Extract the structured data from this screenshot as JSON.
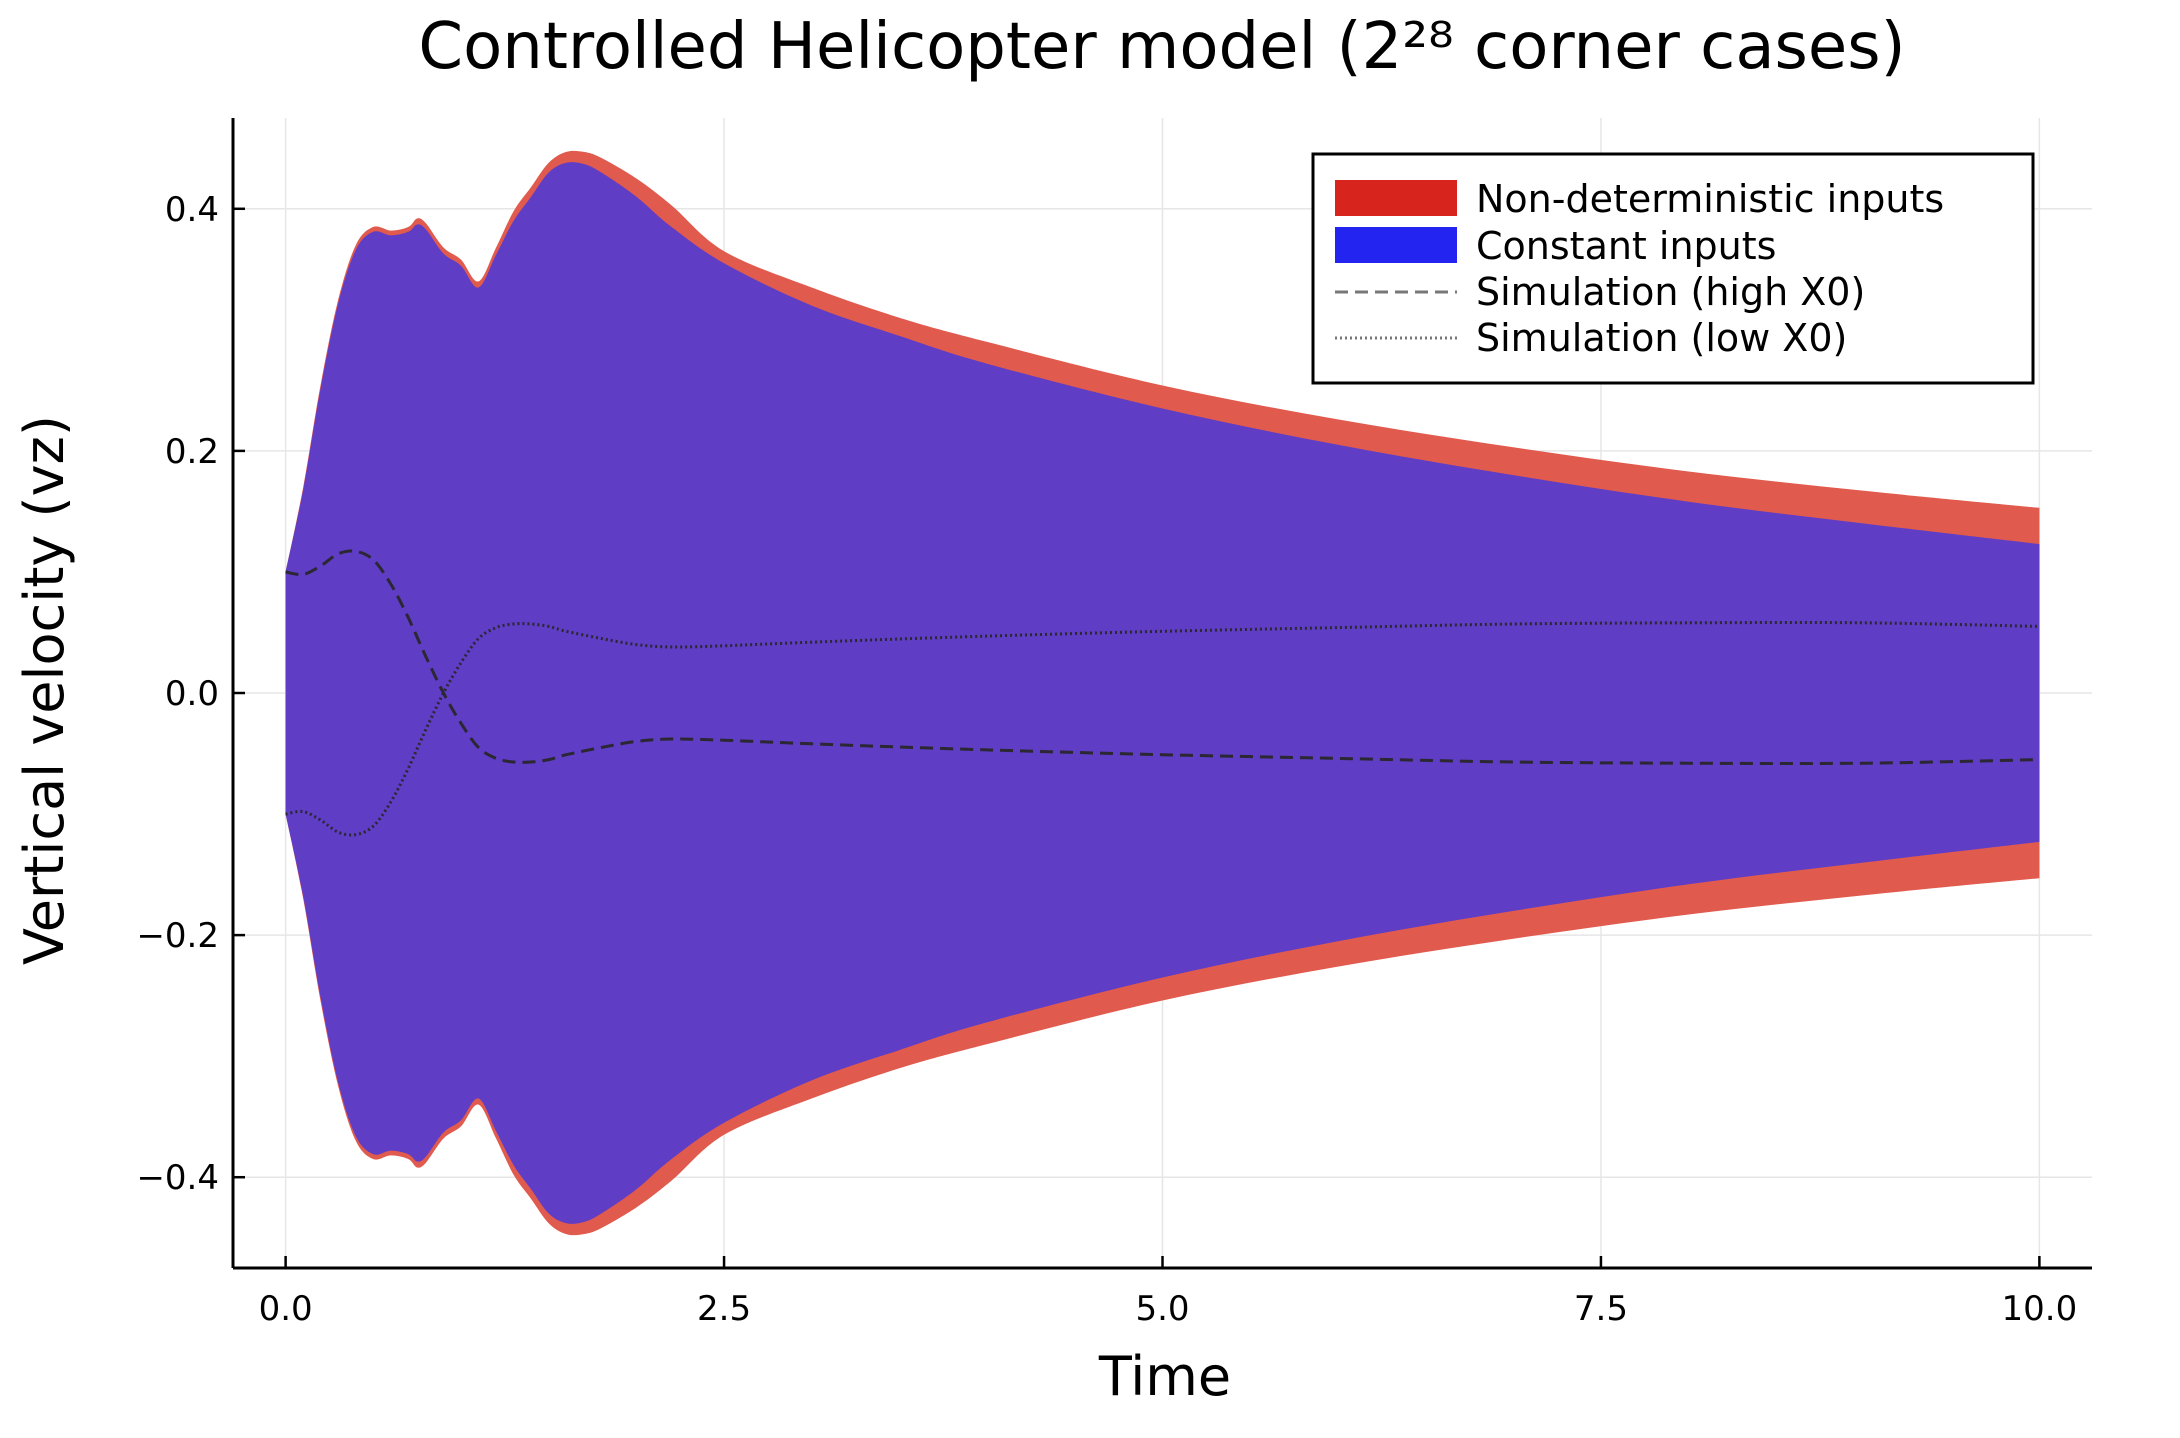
{
  "chart_data": {
    "type": "area",
    "title": "Controlled Helicopter model (2²⁸ corner cases)",
    "xlabel": "Time",
    "ylabel": "Vertical velocity (vz)",
    "xlim": [
      -0.3,
      10.3
    ],
    "ylim": [
      -0.475,
      0.475
    ],
    "xticks": [
      0,
      2.5,
      5,
      7.5,
      10
    ],
    "xtick_labels": [
      "0.0",
      "2.5",
      "5.0",
      "7.5",
      "10.0"
    ],
    "yticks": [
      -0.4,
      -0.2,
      0,
      0.2,
      0.4
    ],
    "ytick_labels": [
      "−0.4",
      "−0.2",
      "0.0",
      "0.2",
      "0.4"
    ],
    "grid": true,
    "legend_position": "top-right",
    "series": [
      {
        "name": "Non-deterministic inputs",
        "kind": "band",
        "color": "#e05a4e",
        "legend_color": "#d7241c",
        "x": [
          0,
          0.1,
          0.2,
          0.3,
          0.4,
          0.5,
          0.6,
          0.7,
          0.75,
          0.8,
          0.9,
          1.0,
          1.1,
          1.2,
          1.3,
          1.4,
          1.5,
          1.6,
          1.7,
          1.8,
          2.0,
          2.2,
          2.5,
          3.0,
          3.5,
          4.0,
          5.0,
          6.0,
          7.0,
          8.0,
          9.0,
          10.0
        ],
        "upper": [
          0.1,
          0.17,
          0.255,
          0.325,
          0.37,
          0.385,
          0.382,
          0.385,
          0.392,
          0.388,
          0.368,
          0.358,
          0.34,
          0.368,
          0.398,
          0.418,
          0.438,
          0.447,
          0.447,
          0.442,
          0.425,
          0.403,
          0.365,
          0.335,
          0.31,
          0.29,
          0.254,
          0.226,
          0.203,
          0.183,
          0.167,
          0.153
        ],
        "lower": [
          -0.1,
          -0.17,
          -0.255,
          -0.325,
          -0.37,
          -0.385,
          -0.382,
          -0.385,
          -0.392,
          -0.388,
          -0.368,
          -0.358,
          -0.34,
          -0.368,
          -0.398,
          -0.418,
          -0.438,
          -0.447,
          -0.447,
          -0.442,
          -0.425,
          -0.403,
          -0.365,
          -0.335,
          -0.31,
          -0.29,
          -0.254,
          -0.226,
          -0.203,
          -0.183,
          -0.167,
          -0.153
        ]
      },
      {
        "name": "Constant inputs",
        "kind": "band",
        "color": "#5f3dc4",
        "legend_color": "#2424f0",
        "x": [
          0,
          0.1,
          0.2,
          0.3,
          0.4,
          0.5,
          0.6,
          0.7,
          0.75,
          0.8,
          0.9,
          1.0,
          1.1,
          1.2,
          1.3,
          1.4,
          1.5,
          1.6,
          1.7,
          1.8,
          2.0,
          2.2,
          2.5,
          3.0,
          3.5,
          4.0,
          5.0,
          6.0,
          7.0,
          8.0,
          9.0,
          10.0
        ],
        "upper": [
          0.1,
          0.168,
          0.252,
          0.322,
          0.366,
          0.381,
          0.378,
          0.381,
          0.387,
          0.383,
          0.363,
          0.353,
          0.335,
          0.362,
          0.39,
          0.41,
          0.43,
          0.438,
          0.437,
          0.43,
          0.41,
          0.385,
          0.355,
          0.32,
          0.295,
          0.272,
          0.235,
          0.205,
          0.18,
          0.158,
          0.14,
          0.123
        ],
        "lower": [
          -0.1,
          -0.168,
          -0.252,
          -0.322,
          -0.366,
          -0.381,
          -0.378,
          -0.381,
          -0.387,
          -0.383,
          -0.363,
          -0.353,
          -0.335,
          -0.362,
          -0.39,
          -0.41,
          -0.43,
          -0.438,
          -0.437,
          -0.43,
          -0.41,
          -0.385,
          -0.355,
          -0.32,
          -0.295,
          -0.272,
          -0.235,
          -0.205,
          -0.18,
          -0.158,
          -0.14,
          -0.123
        ]
      },
      {
        "name": "Simulation (high X0)",
        "kind": "line",
        "style": "dashed",
        "color": "#2b2733",
        "legend_color": "#777777",
        "x": [
          0,
          0.1,
          0.2,
          0.3,
          0.4,
          0.5,
          0.6,
          0.7,
          0.8,
          0.9,
          1.0,
          1.1,
          1.2,
          1.3,
          1.4,
          1.5,
          1.6,
          1.8,
          2.0,
          2.2,
          2.5,
          3.0,
          4.0,
          5.0,
          6.0,
          7.0,
          8.0,
          9.0,
          10.0
        ],
        "y": [
          0.1,
          0.098,
          0.105,
          0.115,
          0.117,
          0.11,
          0.09,
          0.062,
          0.03,
          0.0,
          -0.025,
          -0.045,
          -0.054,
          -0.057,
          -0.057,
          -0.055,
          -0.051,
          -0.045,
          -0.04,
          -0.038,
          -0.039,
          -0.042,
          -0.047,
          -0.051,
          -0.054,
          -0.057,
          -0.058,
          -0.058,
          -0.055
        ]
      },
      {
        "name": "Simulation (low X0)",
        "kind": "line",
        "style": "dotted",
        "color": "#2b2733",
        "legend_color": "#777777",
        "x": [
          0,
          0.1,
          0.2,
          0.3,
          0.4,
          0.5,
          0.6,
          0.7,
          0.8,
          0.9,
          1.0,
          1.1,
          1.2,
          1.3,
          1.4,
          1.5,
          1.6,
          1.8,
          2.0,
          2.2,
          2.5,
          3.0,
          4.0,
          5.0,
          6.0,
          7.0,
          8.0,
          9.0,
          10.0
        ],
        "y": [
          -0.1,
          -0.098,
          -0.105,
          -0.115,
          -0.117,
          -0.11,
          -0.09,
          -0.062,
          -0.03,
          0.0,
          0.025,
          0.045,
          0.054,
          0.057,
          0.057,
          0.055,
          0.051,
          0.045,
          0.04,
          0.038,
          0.039,
          0.042,
          0.047,
          0.051,
          0.054,
          0.057,
          0.058,
          0.058,
          0.055
        ]
      }
    ]
  }
}
